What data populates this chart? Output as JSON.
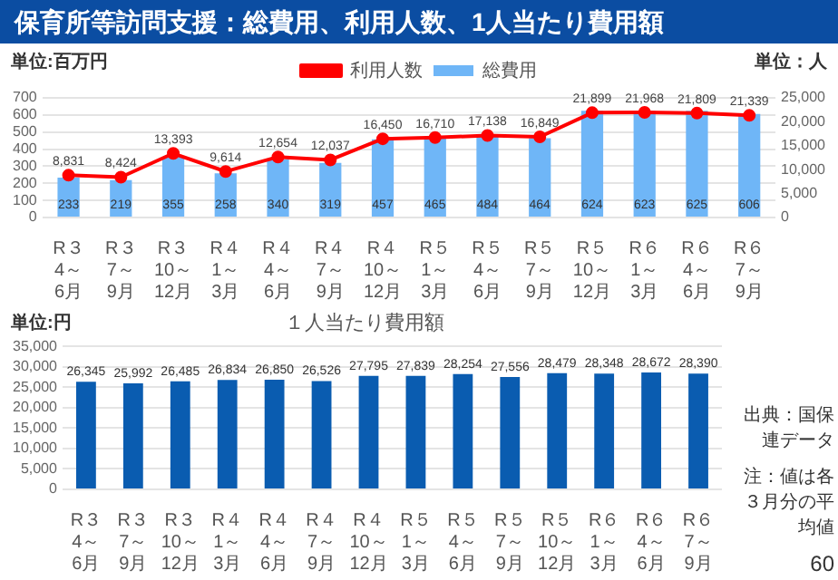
{
  "chart_data": [
    {
      "type": "bar",
      "title": "保育所等訪問支援：総費用、利用人数、1人当たり費用額",
      "ylabel": "単位:百万円",
      "y2label": "単位：人",
      "categories": [
        "R３\n4～6月",
        "R３\n7～9月",
        "R３\n10～12月",
        "R４\n1～3月",
        "R４\n4～6月",
        "R４\n7～9月",
        "R４\n10～12月",
        "R５\n1～3月",
        "R５\n4～6月",
        "R５\n7～9月",
        "R５\n10～12月",
        "R６\n1～3月",
        "R６\n4～6月",
        "R６\n7～9月"
      ],
      "series": [
        {
          "name": "総費用",
          "color": "#6fb6f7",
          "values": [
            233,
            219,
            355,
            258,
            340,
            319,
            457,
            465,
            484,
            464,
            624,
            623,
            625,
            606
          ],
          "value_labels": [
            "233",
            "219",
            "355",
            "258",
            "340",
            "319",
            "457",
            "465",
            "484",
            "464",
            "624",
            "623",
            "625",
            "606"
          ]
        },
        {
          "name": "利用人数",
          "type": "line",
          "axis": "y2",
          "marker": "circle",
          "color": "#ff0000",
          "values": [
            8831,
            8424,
            13393,
            9614,
            12654,
            12037,
            16450,
            16710,
            17138,
            16849,
            21899,
            21968,
            21809,
            21339
          ],
          "value_labels": [
            "8,831",
            "8,424",
            "13,393",
            "9,614",
            "12,654",
            "12,037",
            "16,450",
            "16,710",
            "17,138",
            "16,849",
            "21,899",
            "21,968",
            "21,809",
            "21,339"
          ]
        }
      ],
      "ylim": [
        0,
        700
      ],
      "yticks": [
        0,
        100,
        200,
        300,
        400,
        500,
        600,
        700
      ],
      "y2lim": [
        0,
        25000
      ],
      "y2ticks": [
        0,
        {
          "value": 5000,
          "label": "5,000"
        },
        {
          "value": 10000,
          "label": "10,000"
        },
        {
          "value": 15000,
          "label": "15,000"
        },
        {
          "value": 20000,
          "label": "20,000"
        },
        {
          "value": 25000,
          "label": "25,000"
        }
      ],
      "grid": "y",
      "legend": "top"
    },
    {
      "type": "bar",
      "title": "１人当たり費用額",
      "ylabel": "単位:円",
      "categories": [
        "R３\n4～6月",
        "R３\n7～9月",
        "R３\n10～12月",
        "R４\n1～3月",
        "R４\n4～6月",
        "R４\n7～9月",
        "R４\n10～12月",
        "R５\n1～3月",
        "R５\n4～6月",
        "R５\n7～9月",
        "R５\n10～12月",
        "R６\n1～3月",
        "R６\n4～6月",
        "R６\n7～9月"
      ],
      "values": [
        26345,
        25992,
        26485,
        26834,
        26850,
        26526,
        27795,
        27839,
        28254,
        27556,
        28479,
        28348,
        28672,
        28390
      ],
      "value_labels": [
        "26,345",
        "25,992",
        "26,485",
        "26,834",
        "26,850",
        "26,526",
        "27,795",
        "27,839",
        "28,254",
        "27,556",
        "28,479",
        "28,348",
        "28,672",
        "28,390"
      ],
      "color": "#0a5cb0",
      "ylim": [
        0,
        35000
      ],
      "yticks": [
        0,
        {
          "value": 5000,
          "label": "5,000"
        },
        {
          "value": 10000,
          "label": "10,000"
        },
        {
          "value": 15000,
          "label": "15,000"
        },
        {
          "value": 20000,
          "label": "20,000"
        },
        {
          "value": 25000,
          "label": "25,000"
        },
        {
          "value": 30000,
          "label": "30,000"
        },
        {
          "value": 35000,
          "label": "35,000"
        }
      ],
      "grid": "y",
      "annotations": [
        "出典：国保連データ",
        "注：値は各３月分の平均値",
        "60"
      ]
    }
  ]
}
